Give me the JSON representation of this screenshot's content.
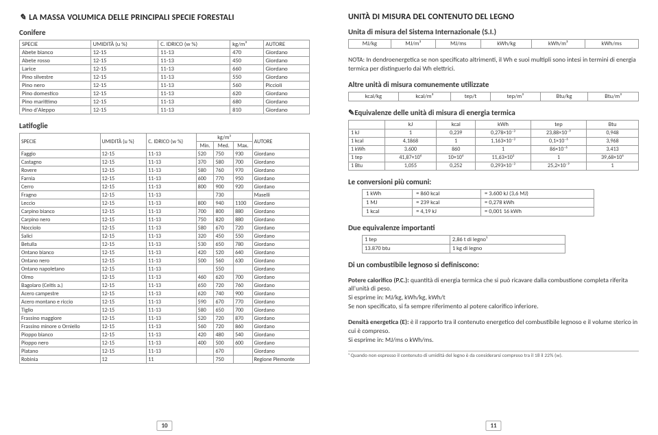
{
  "left": {
    "title": "LA MASSA VOLUMICA DELLE PRINCIPALI SPECIE FORESTALI",
    "conifere_label": "Conifere",
    "latifoglie_label": "Latifoglie",
    "conifere_headers": [
      "SPECIE",
      "UMIDITÀ (u %)",
      "C. IDRICO (w %)",
      "kg/m³",
      "AUTORE"
    ],
    "conifere_rows": [
      [
        "Abete bianco",
        "12-15",
        "11-13",
        "470",
        "Giordano"
      ],
      [
        "Abete rosso",
        "12-15",
        "11-13",
        "450",
        "Giordano"
      ],
      [
        "Larice",
        "12-15",
        "11-13",
        "660",
        "Giordano"
      ],
      [
        "Pino silvestre",
        "12-15",
        "11-13",
        "550",
        "Giordano"
      ],
      [
        "Pino nero",
        "12-15",
        "11-13",
        "560",
        "Piccioli"
      ],
      [
        "Pino domestico",
        "12-15",
        "11-13",
        "620",
        "Giordano"
      ],
      [
        "Pino marittimo",
        "12-15",
        "11-13",
        "680",
        "Giordano"
      ],
      [
        "Pino d'Aleppo",
        "12-15",
        "11-13",
        "810",
        "Giordano"
      ]
    ],
    "latifoglie_headers_top": [
      "SPECIE",
      "UMIDITÀ (u %)",
      "C. IDRICO (w %)",
      "kg/m³",
      "AUTORE"
    ],
    "latifoglie_headers_sub": [
      "Min.",
      "Med.",
      "Max."
    ],
    "latifoglie_rows": [
      [
        "Faggio",
        "12-15",
        "11-13",
        "520",
        "750",
        "930",
        "Giordano"
      ],
      [
        "Castagno",
        "12-15",
        "11-13",
        "370",
        "580",
        "700",
        "Giordano"
      ],
      [
        "Rovere",
        "12-15",
        "11-13",
        "580",
        "760",
        "970",
        "Giordano"
      ],
      [
        "Farnia",
        "12-15",
        "11-13",
        "600",
        "770",
        "950",
        "Giordano"
      ],
      [
        "Cerro",
        "12-15",
        "11-13",
        "800",
        "900",
        "920",
        "Giordano"
      ],
      [
        "Fragno",
        "12-15",
        "11-13",
        "",
        "730",
        "",
        "Maselli"
      ],
      [
        "Leccio",
        "12-15",
        "11-13",
        "800",
        "940",
        "1100",
        "Giordano"
      ],
      [
        "Carpino bianco",
        "12-15",
        "11-13",
        "700",
        "800",
        "880",
        "Giordano"
      ],
      [
        "Carpino nero",
        "12-15",
        "11-13",
        "750",
        "820",
        "880",
        "Giordano"
      ],
      [
        "Nocciolo",
        "12-15",
        "11-13",
        "580",
        "670",
        "720",
        "Giordano"
      ],
      [
        "Salici",
        "12-15",
        "11-13",
        "320",
        "450",
        "550",
        "Giordano"
      ],
      [
        "Betulla",
        "12-15",
        "11-13",
        "530",
        "650",
        "780",
        "Giordano"
      ],
      [
        "Ontano bianco",
        "12-15",
        "11-13",
        "420",
        "520",
        "640",
        "Giordano"
      ],
      [
        "Ontano nero",
        "12-15",
        "11-13",
        "500",
        "560",
        "630",
        "Giordano"
      ],
      [
        "Ontano napoletano",
        "12-15",
        "11-13",
        "",
        "550",
        "",
        "Giordano"
      ],
      [
        "Olmo",
        "12-15",
        "11-13",
        "460",
        "620",
        "700",
        "Giordano"
      ],
      [
        "Bagolaro (Celtis a.)",
        "12-15",
        "11-13",
        "650",
        "720",
        "760",
        "Giordano"
      ],
      [
        "Acero campestre",
        "12-15",
        "11-13",
        "620",
        "740",
        "900",
        "Giordano"
      ],
      [
        "Acero montano e riccio",
        "12-15",
        "11-13",
        "590",
        "670",
        "770",
        "Giordano"
      ],
      [
        "Tiglio",
        "12-15",
        "11-13",
        "580",
        "650",
        "700",
        "Giordano"
      ],
      [
        "Frassino maggiore",
        "12-15",
        "11-13",
        "520",
        "720",
        "870",
        "Giordano"
      ],
      [
        "Frassino minore o Orniello",
        "12-15",
        "11-13",
        "560",
        "720",
        "860",
        "Giordano"
      ],
      [
        "Pioppo bianco",
        "12-15",
        "11-13",
        "420",
        "480",
        "540",
        "Giordano"
      ],
      [
        "Pioppo nero",
        "12-15",
        "11-13",
        "400",
        "500",
        "600",
        "Giordano"
      ],
      [
        "Platano",
        "12-15",
        "11-13",
        "",
        "670",
        "",
        "Giordano"
      ],
      [
        "Robinia",
        "12",
        "11",
        "",
        "750",
        "",
        "Regione Piemonte"
      ]
    ],
    "pagenum": "10"
  },
  "right": {
    "title": "UNITÀ DI MISURA DEL CONTENUTO DEL LEGNO",
    "si_label": "Unita di misura del Sistema Internazionale (S.I.)",
    "si_row": [
      "MJ/kg",
      "MJ/m³",
      "MJ/ms",
      "kWh/kg",
      "kWh/m³",
      "kWh/ms"
    ],
    "nota_label": "NOTA:",
    "nota_text": " In dendroenergetica se non specificato altrimenti, il Wh e suoi multipli sono intesi in termini di energia termica per distinguerlo dai Wh elettrici.",
    "altre_label": "Altre unità di misura comunemente utilizzate",
    "altre_row": [
      "kcal/kg",
      "kcal/m³",
      "tep/t",
      "tep/m³",
      "Btu/kg",
      "Btu/m³"
    ],
    "equi_label": "Equivalenze delle unità di misura di energia termica",
    "equi_headers": [
      "",
      "kJ",
      "kcal",
      "kWh",
      "tep",
      "Btu"
    ],
    "equi_rows": [
      [
        "1 kJ",
        "1",
        "0,239",
        "0,278×10⁻³",
        "23,88×10⁻⁹",
        "0,948"
      ],
      [
        "1 kcal",
        "4,1868",
        "1",
        "1,163×10⁻³",
        "0,1×10⁻⁶",
        "3,968"
      ],
      [
        "1 kWh",
        "3.600",
        "860",
        "1",
        "86×10⁻⁶",
        "3.413"
      ],
      [
        "1 tep",
        "41,87×10⁶",
        "10×10⁶",
        "11,63×10³",
        "1",
        "39,68×10⁶"
      ],
      [
        "1 Btu",
        "1,055",
        "0,252",
        "0,293×10⁻³",
        "25,2×10⁻⁹",
        "1"
      ]
    ],
    "conv_label": "Le conversioni più comuni:",
    "conv_rows": [
      [
        "1 kWh",
        "= 860 kcal",
        "= 3.600 kJ (3,6 MJ)"
      ],
      [
        "1 MJ",
        "= 239 kcal",
        "= 0,278 kWh"
      ],
      [
        "1 kcal",
        "= 4,19 kJ",
        "= 0,001 16 kWh"
      ]
    ],
    "due_label": "Due equivalenze importanti",
    "due_rows": [
      [
        "1 tep",
        "2,86 t di legno¹"
      ],
      [
        "13.870 btu",
        "1 kg di legno"
      ]
    ],
    "comb_label": "Di un combustibile legnoso si definiscono:",
    "pc_bold": "Potere calorifico (P.C.):",
    "pc_text": " quantità di energia termica che si può ricavare dalla combustione completa riferita all'unità di peso.",
    "pc_line2": "Si esprime in: MJ/kg, kWh/kg, kWh/t",
    "pc_line3": "Se non specificato, si fa sempre riferimento al potere calorifico inferiore.",
    "de_bold": "Densità energetica (E):",
    "de_text": " è il rapporto tra il contenuto energetico del combustibile legnoso e il volume sterico in cui è compreso.",
    "de_line2": "Si esprime in: MJ/ms o kWh/ms.",
    "footnote": "¹ Quando non espresso il contenuto di umidità del legno è da considerarsi compreso tra il 18 il 22% (w).",
    "pagenum": "11"
  }
}
